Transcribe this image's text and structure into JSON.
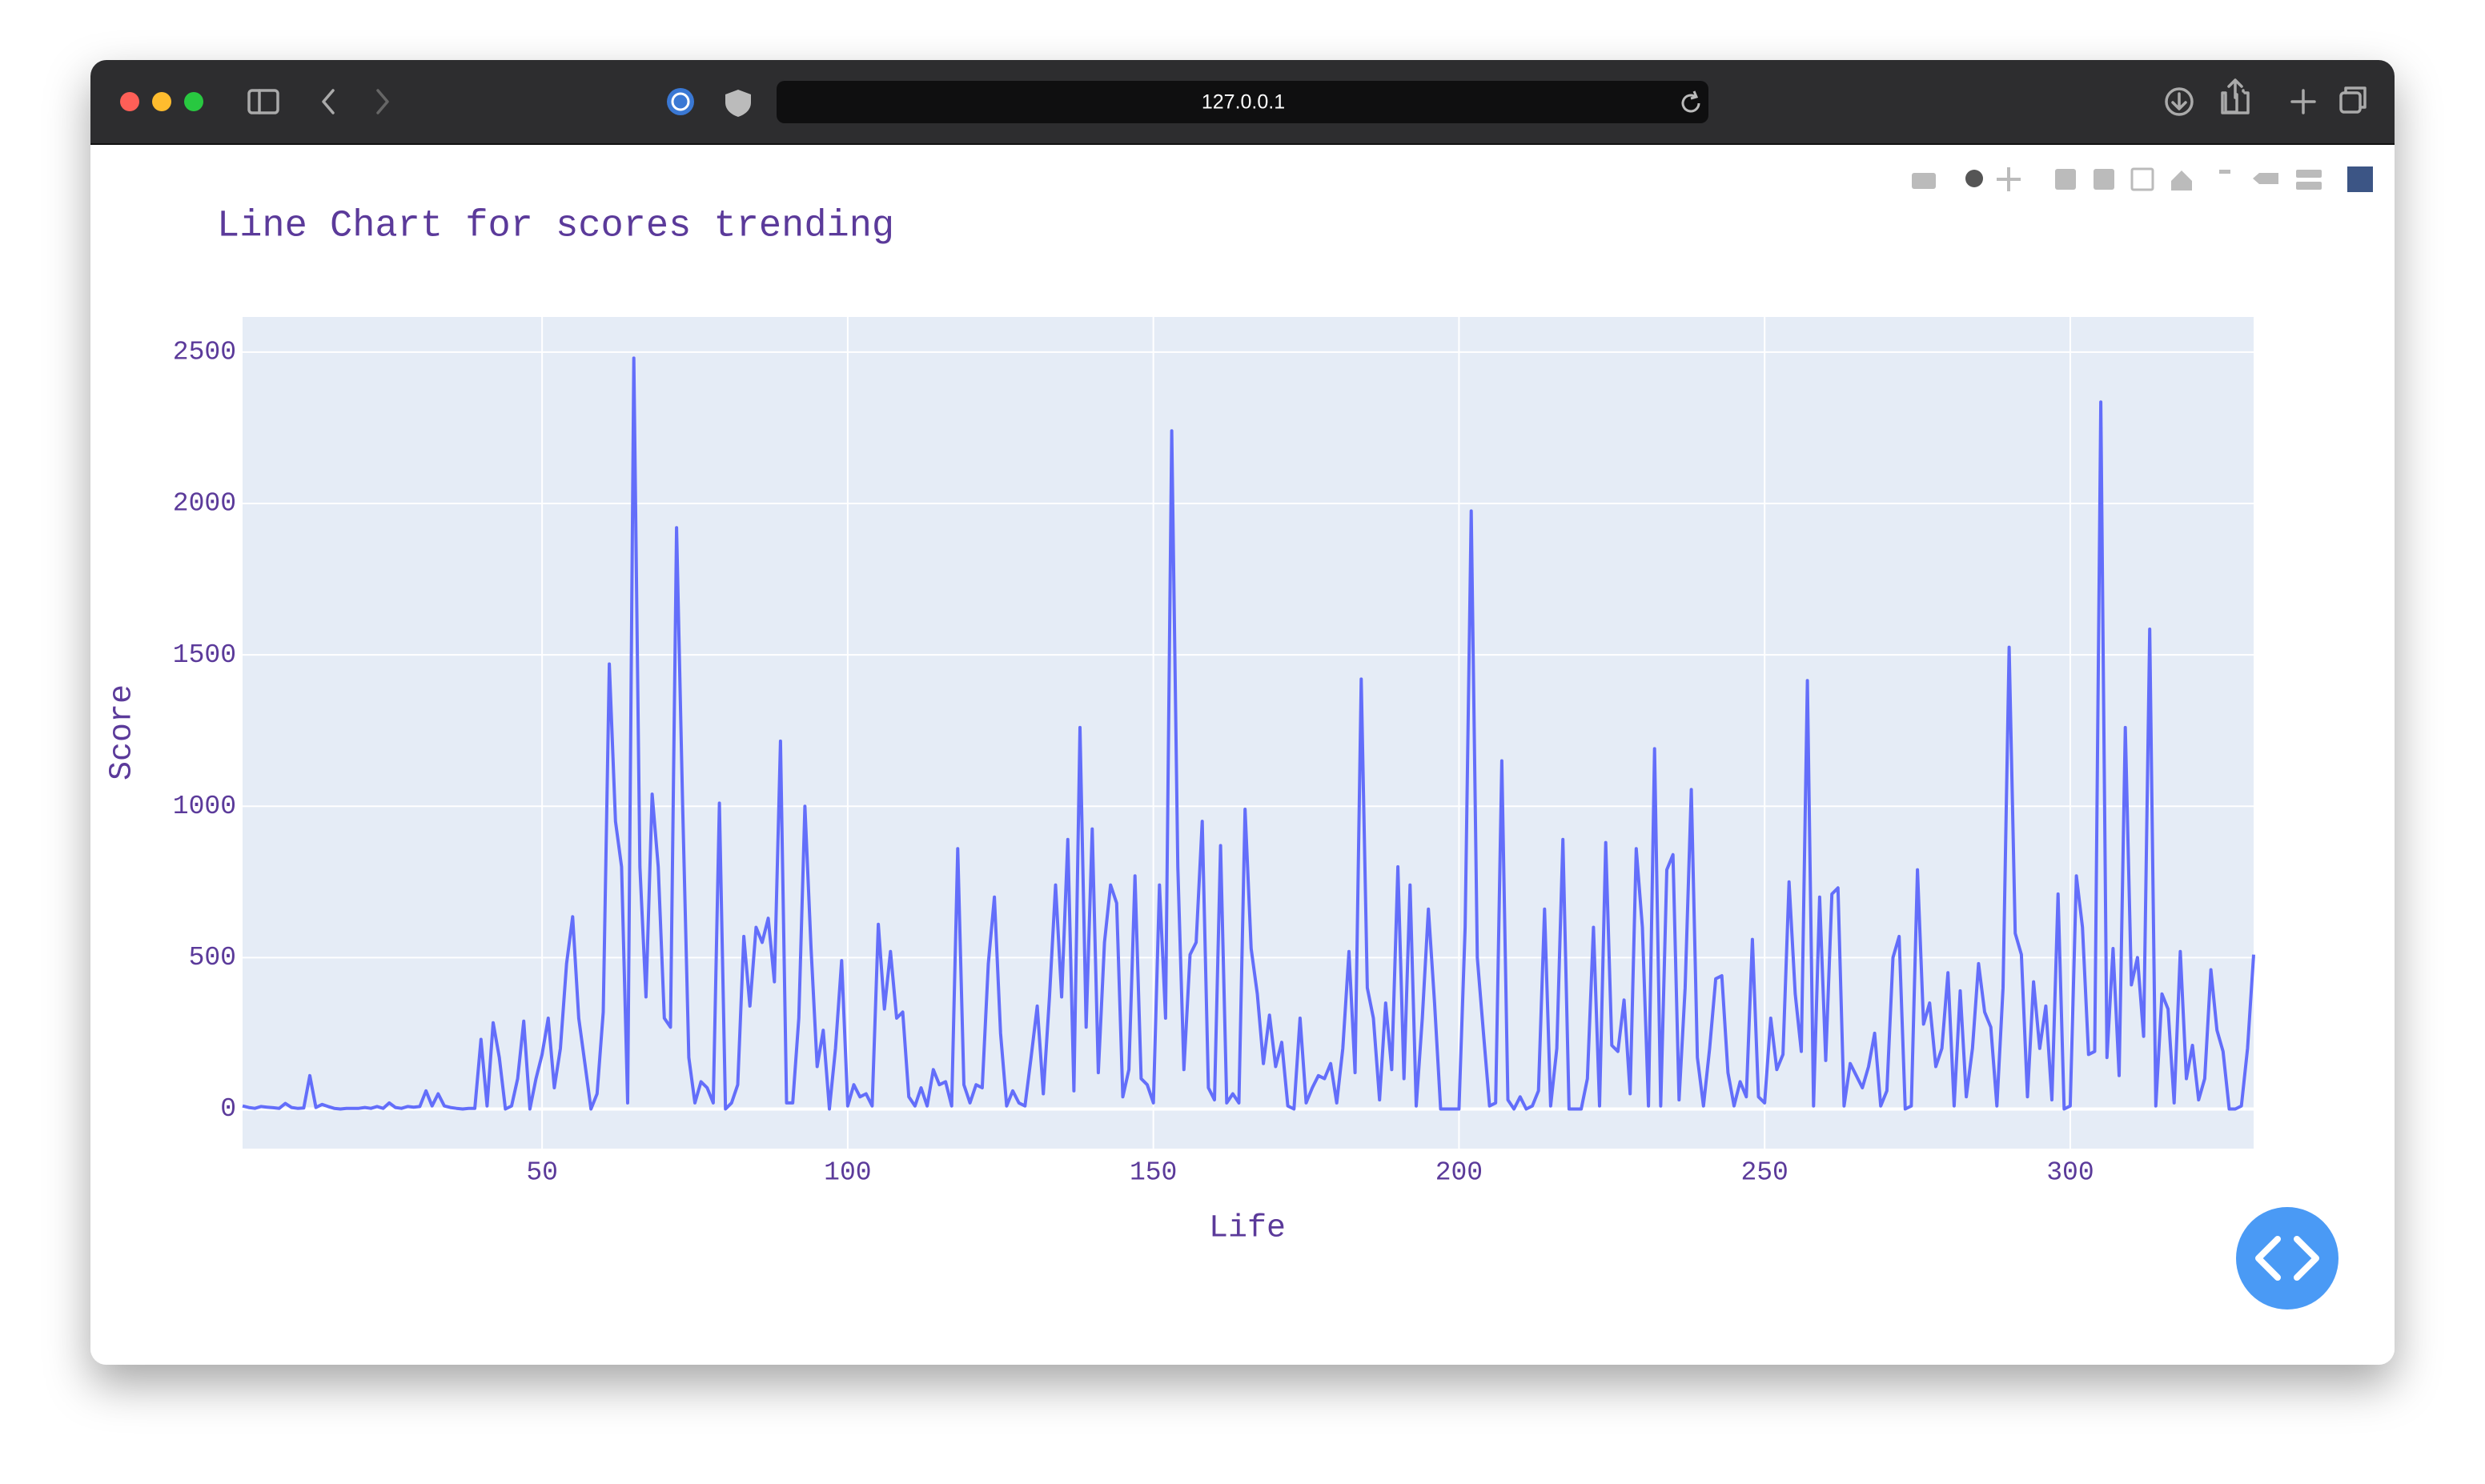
{
  "browser": {
    "url": "127.0.0.1"
  },
  "chart_data": {
    "type": "line",
    "title": "Line Chart for scores trending",
    "x_label": "Life",
    "y_label": "Score",
    "color": "#636efa",
    "grid": true,
    "xlim": [
      1,
      330
    ],
    "ylim": [
      -131,
      2616
    ],
    "xticks": [
      50,
      100,
      150,
      200,
      250,
      300
    ],
    "yticks": [
      0,
      500,
      1000,
      1500,
      2000,
      2500
    ],
    "x": [
      1,
      2,
      3,
      4,
      5,
      6,
      7,
      8,
      9,
      10,
      11,
      12,
      13,
      14,
      15,
      16,
      17,
      18,
      19,
      20,
      21,
      22,
      23,
      24,
      25,
      26,
      27,
      28,
      29,
      30,
      31,
      32,
      33,
      34,
      35,
      36,
      37,
      38,
      39,
      40,
      41,
      42,
      43,
      44,
      45,
      46,
      47,
      48,
      49,
      50,
      51,
      52,
      53,
      54,
      55,
      56,
      57,
      58,
      59,
      60,
      61,
      62,
      63,
      64,
      65,
      66,
      67,
      68,
      69,
      70,
      71,
      72,
      73,
      74,
      75,
      76,
      77,
      78,
      79,
      80,
      81,
      82,
      83,
      84,
      85,
      86,
      87,
      88,
      89,
      90,
      91,
      92,
      93,
      94,
      95,
      96,
      97,
      98,
      99,
      100,
      101,
      102,
      103,
      104,
      105,
      106,
      107,
      108,
      109,
      110,
      111,
      112,
      113,
      114,
      115,
      116,
      117,
      118,
      119,
      120,
      121,
      122,
      123,
      124,
      125,
      126,
      127,
      128,
      129,
      130,
      131,
      132,
      133,
      134,
      135,
      136,
      137,
      138,
      139,
      140,
      141,
      142,
      143,
      144,
      145,
      146,
      147,
      148,
      149,
      150,
      151,
      152,
      153,
      154,
      155,
      156,
      157,
      158,
      159,
      160,
      161,
      162,
      163,
      164,
      165,
      166,
      167,
      168,
      169,
      170,
      171,
      172,
      173,
      174,
      175,
      176,
      177,
      178,
      179,
      180,
      181,
      182,
      183,
      184,
      185,
      186,
      187,
      188,
      189,
      190,
      191,
      192,
      193,
      194,
      195,
      196,
      197,
      198,
      199,
      200,
      201,
      202,
      203,
      204,
      205,
      206,
      207,
      208,
      209,
      210,
      211,
      212,
      213,
      214,
      215,
      216,
      217,
      218,
      219,
      220,
      221,
      222,
      223,
      224,
      225,
      226,
      227,
      228,
      229,
      230,
      231,
      232,
      233,
      234,
      235,
      236,
      237,
      238,
      239,
      240,
      241,
      242,
      243,
      244,
      245,
      246,
      247,
      248,
      249,
      250,
      251,
      252,
      253,
      254,
      255,
      256,
      257,
      258,
      259,
      260,
      261,
      262,
      263,
      264,
      265,
      266,
      267,
      268,
      269,
      270,
      271,
      272,
      273,
      274,
      275,
      276,
      277,
      278,
      279,
      280,
      281,
      282,
      283,
      284,
      285,
      286,
      287,
      288,
      289,
      290,
      291,
      292,
      293,
      294,
      295,
      296,
      297,
      298,
      299,
      300,
      301,
      302,
      303,
      304,
      305,
      306,
      307,
      308,
      309,
      310,
      311,
      312,
      313,
      314,
      315,
      316,
      317,
      318,
      319,
      320,
      321,
      322,
      323,
      324,
      325,
      326,
      327,
      328,
      329,
      330
    ],
    "values": [
      10,
      5,
      2,
      8,
      6,
      4,
      2,
      18,
      5,
      2,
      3,
      110,
      5,
      15,
      8,
      2,
      0,
      2,
      2,
      2,
      5,
      2,
      8,
      2,
      20,
      5,
      2,
      8,
      6,
      8,
      60,
      10,
      50,
      10,
      5,
      2,
      0,
      2,
      2,
      230,
      10,
      285,
      170,
      0,
      10,
      100,
      290,
      0,
      100,
      180,
      300,
      70,
      200,
      480,
      635,
      300,
      150,
      0,
      50,
      320,
      1470,
      950,
      800,
      20,
      2480,
      800,
      370,
      1040,
      800,
      300,
      270,
      1920,
      1000,
      170,
      20,
      90,
      70,
      20,
      1010,
      0,
      20,
      80,
      570,
      340,
      600,
      550,
      630,
      420,
      1215,
      20,
      20,
      300,
      1000,
      530,
      140,
      260,
      0,
      200,
      490,
      10,
      80,
      40,
      50,
      10,
      610,
      330,
      520,
      300,
      320,
      40,
      10,
      70,
      10,
      130,
      80,
      90,
      10,
      860,
      80,
      20,
      80,
      70,
      480,
      700,
      250,
      10,
      60,
      20,
      10,
      170,
      340,
      50,
      370,
      740,
      370,
      890,
      60,
      1260,
      270,
      925,
      120,
      550,
      740,
      680,
      40,
      130,
      770,
      100,
      80,
      20,
      740,
      300,
      2240,
      800,
      130,
      510,
      550,
      950,
      70,
      30,
      870,
      20,
      50,
      20,
      990,
      530,
      380,
      150,
      310,
      140,
      220,
      10,
      0,
      300,
      20,
      70,
      110,
      100,
      150,
      20,
      200,
      520,
      120,
      1420,
      400,
      300,
      30,
      350,
      130,
      800,
      100,
      740,
      10,
      300,
      660,
      350,
      0,
      0,
      0,
      0,
      600,
      1975,
      500,
      250,
      10,
      20,
      1150,
      30,
      0,
      40,
      0,
      10,
      60,
      660,
      10,
      200,
      890,
      0,
      0,
      0,
      100,
      600,
      10,
      880,
      210,
      190,
      360,
      50,
      860,
      600,
      10,
      1190,
      10,
      790,
      840,
      30,
      400,
      1055,
      170,
      10,
      200,
      430,
      440,
      120,
      10,
      90,
      40,
      560,
      40,
      20,
      300,
      130,
      180,
      750,
      380,
      190,
      1415,
      10,
      700,
      160,
      710,
      730,
      10,
      150,
      110,
      70,
      140,
      250,
      10,
      60,
      500,
      570,
      0,
      10,
      790,
      280,
      350,
      140,
      200,
      450,
      10,
      390,
      40,
      200,
      480,
      320,
      270,
      10,
      400,
      1525,
      580,
      510,
      40,
      420,
      200,
      340,
      30,
      710,
      0,
      10,
      770,
      600,
      180,
      190,
      2335,
      170,
      530,
      110,
      1260,
      410,
      500,
      240,
      1585,
      10,
      380,
      330,
      20,
      520,
      100,
      210,
      30,
      100,
      460,
      260,
      190,
      0,
      0,
      10,
      200,
      510
    ]
  }
}
